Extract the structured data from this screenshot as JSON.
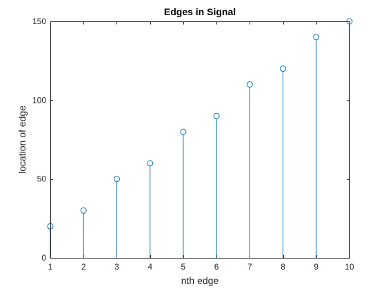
{
  "chart_data": {
    "type": "stem",
    "title": "Edges in Signal",
    "xlabel": "nth edge",
    "ylabel": "location of edge",
    "x": [
      1,
      2,
      3,
      4,
      5,
      6,
      7,
      8,
      9,
      10
    ],
    "values": [
      20,
      30,
      50,
      60,
      80,
      90,
      110,
      120,
      140,
      150
    ],
    "xlim": [
      1,
      10
    ],
    "ylim": [
      0,
      150
    ],
    "xticks": [
      1,
      2,
      3,
      4,
      5,
      6,
      7,
      8,
      9,
      10
    ],
    "yticks": [
      0,
      50,
      100,
      150
    ],
    "grid": false,
    "marker": "open-circle",
    "colors": {
      "series": "#0072BD",
      "axes": "#262626",
      "background": "#ffffff"
    }
  }
}
